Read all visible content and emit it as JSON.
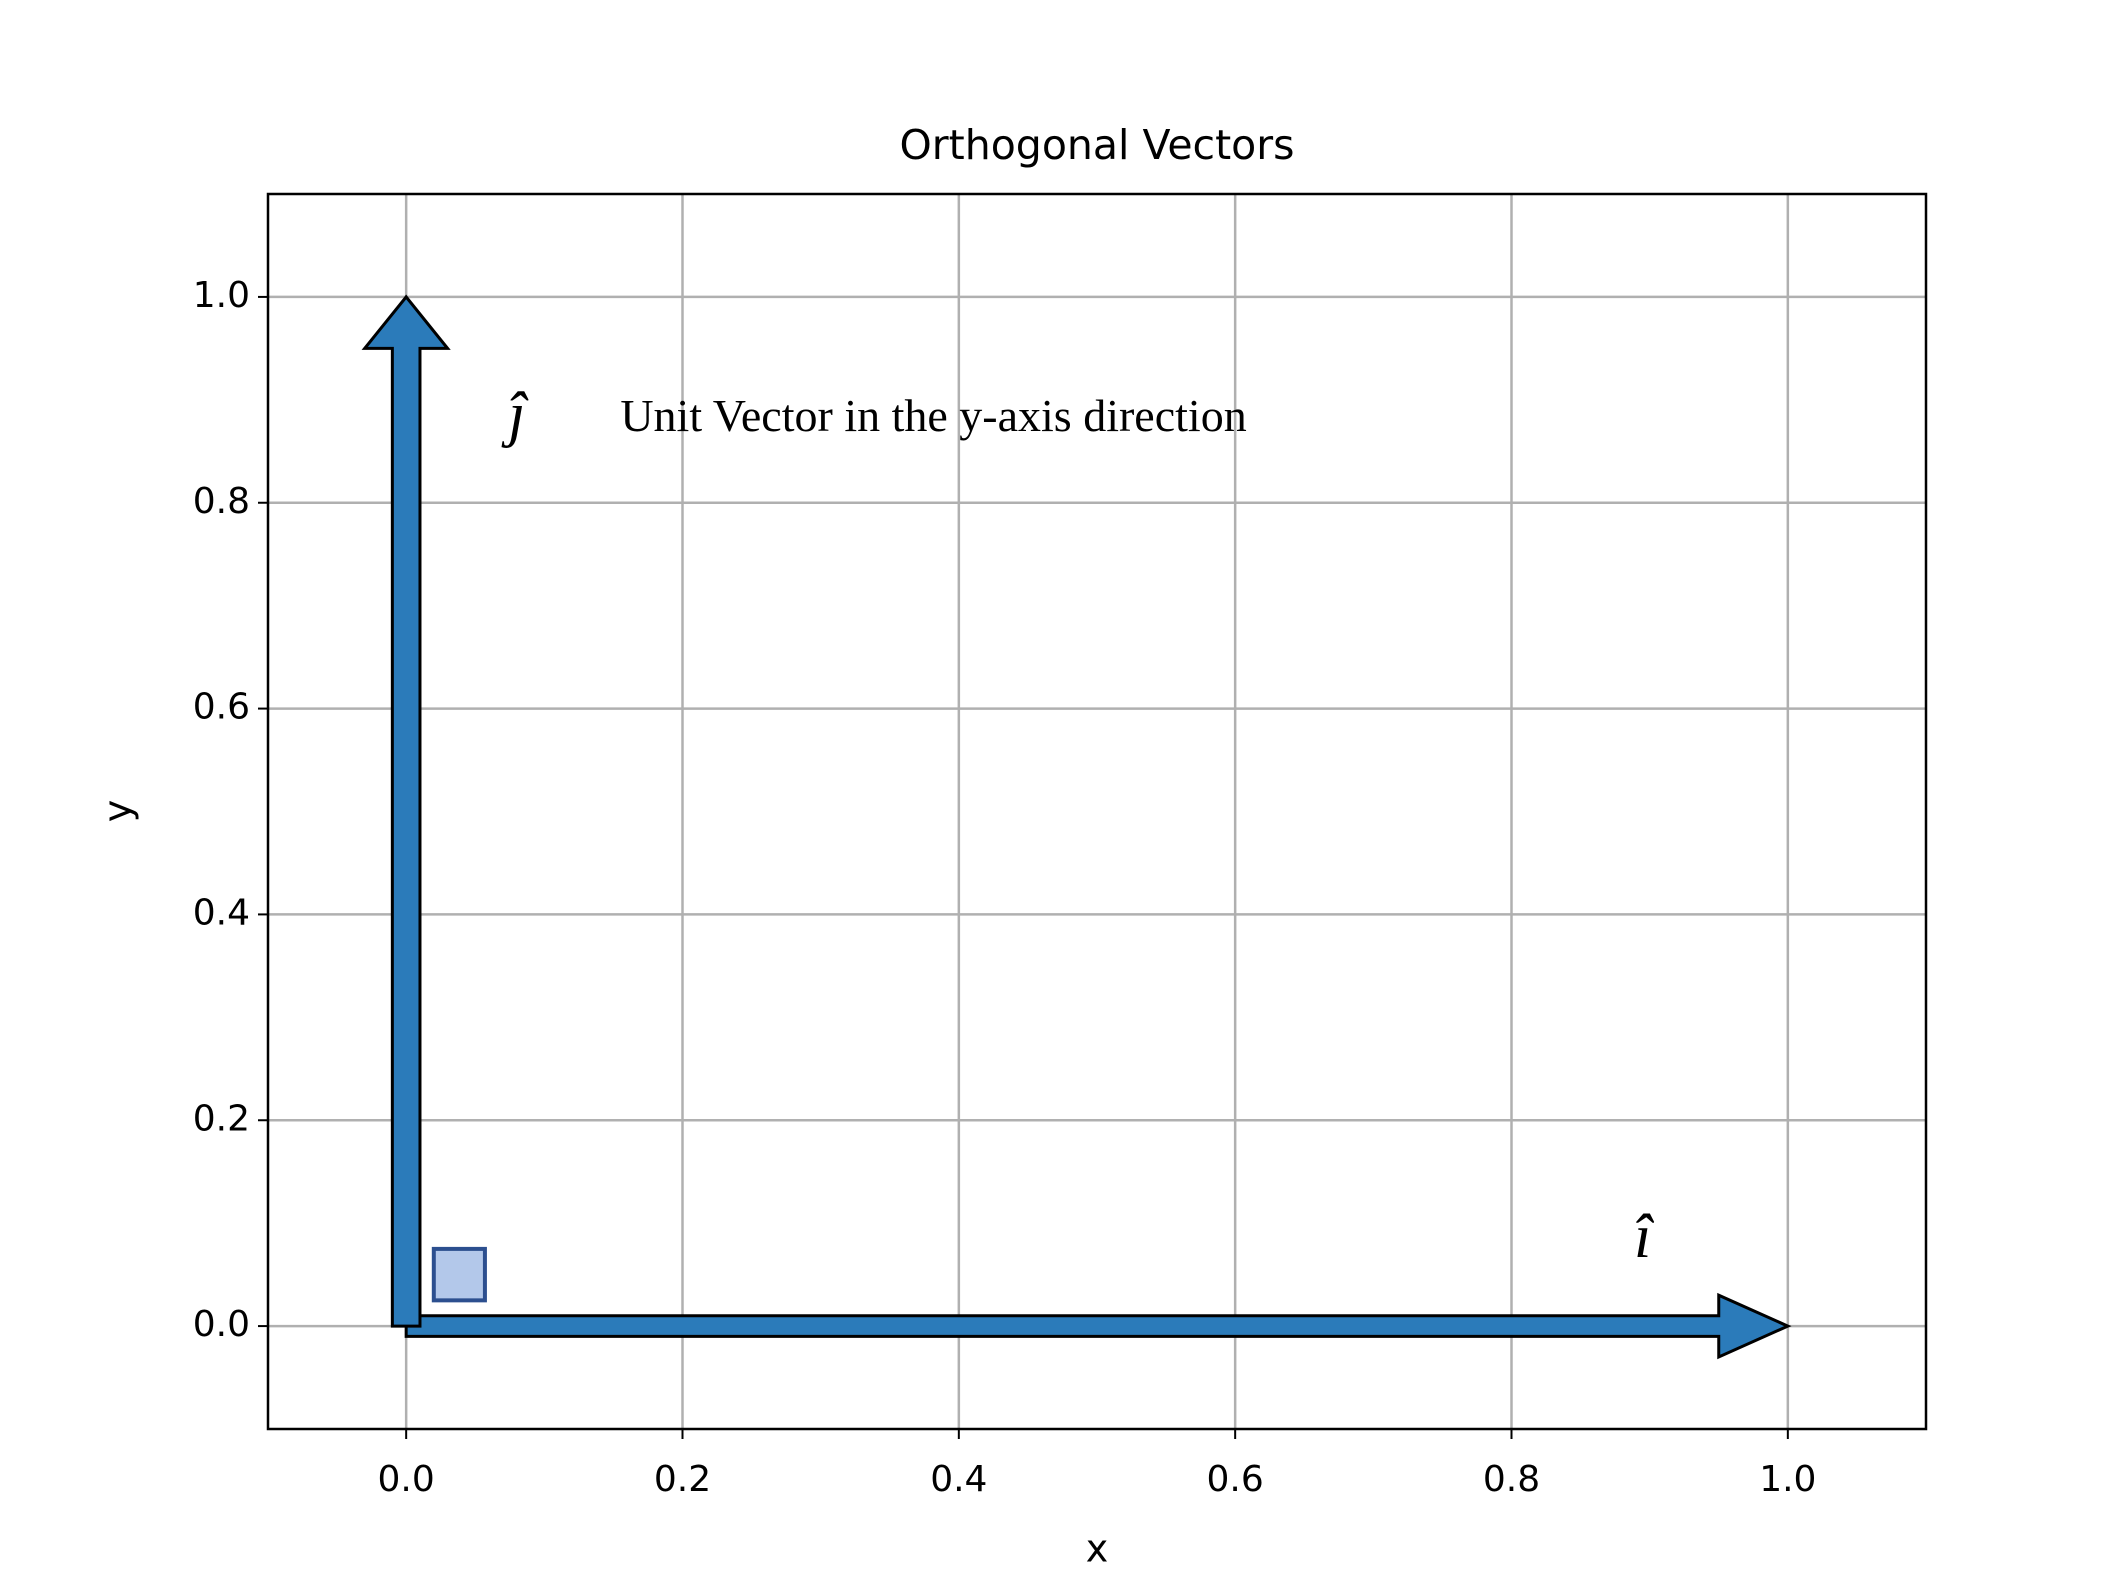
{
  "chart_data": {
    "type": "vector",
    "title": "Orthogonal Vectors",
    "x_label": "x",
    "y_label": "y",
    "xlim": [
      -0.1,
      1.1
    ],
    "ylim": [
      -0.1,
      1.1
    ],
    "xticks": [
      {
        "value": 0,
        "label": "0.0"
      },
      {
        "value": 0.2,
        "label": "0.2"
      },
      {
        "value": 0.4,
        "label": "0.4"
      },
      {
        "value": 0.6,
        "label": "0.6"
      },
      {
        "value": 0.8,
        "label": "0.8"
      },
      {
        "value": 1,
        "label": "1.0"
      }
    ],
    "yticks": [
      {
        "value": 0,
        "label": "0.0"
      },
      {
        "value": 0.2,
        "label": "0.2"
      },
      {
        "value": 0.4,
        "label": "0.4"
      },
      {
        "value": 0.6,
        "label": "0.6"
      },
      {
        "value": 0.8,
        "label": "0.8"
      },
      {
        "value": 1,
        "label": "1.0"
      }
    ],
    "grid": true,
    "vectors": [
      {
        "x": 0,
        "y": 0,
        "dx": 1,
        "dy": 0,
        "color": "#2b7bba",
        "width": 0.02,
        "head_width": 0.06,
        "head_length": 0.05
      },
      {
        "x": 0,
        "y": 0,
        "dx": 0,
        "dy": 1,
        "color": "#2b7bba",
        "width": 0.02,
        "head_width": 0.06,
        "head_length": 0.05
      }
    ],
    "corner_marker": {
      "x": 0.02,
      "y": 0.025,
      "width": 0.037,
      "height": 0.05,
      "color": "#b3c8ea",
      "edge_color": "#2c4f8f"
    },
    "annotations": [
      {
        "text": "ĵ",
        "x": 0.08,
        "y": 0.88
      },
      {
        "text": "Unit Vector in the y-axis direction",
        "x": 0.155,
        "y": 0.88
      },
      {
        "text": "î",
        "x": 0.895,
        "y": 0.081
      }
    ]
  }
}
